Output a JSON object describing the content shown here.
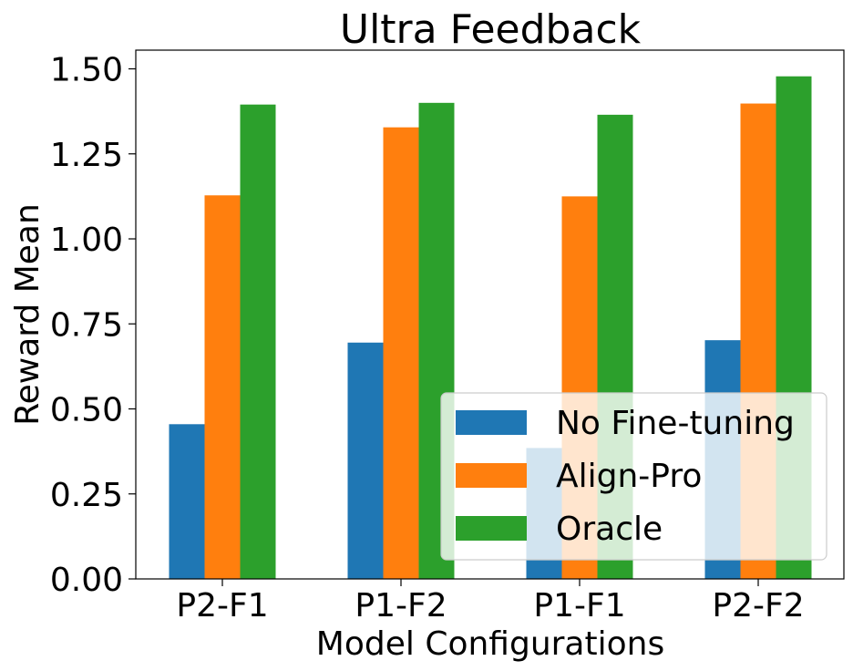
{
  "chart_data": {
    "type": "bar",
    "title": "Ultra Feedback",
    "xlabel": "Model Configurations",
    "ylabel": "Reward Mean",
    "categories": [
      "P2-F1",
      "P1-F2",
      "P1-F1",
      "P2-F2"
    ],
    "series": [
      {
        "name": "No Fine-tuning",
        "color": "#1f77b4",
        "values": [
          0.455,
          0.695,
          0.385,
          0.702
        ]
      },
      {
        "name": "Align-Pro",
        "color": "#ff7f0e",
        "values": [
          1.128,
          1.328,
          1.125,
          1.398
        ]
      },
      {
        "name": "Oracle",
        "color": "#2ca02c",
        "values": [
          1.395,
          1.4,
          1.365,
          1.478
        ]
      }
    ],
    "ylim": [
      0,
      1.555
    ],
    "yticks": [
      "0.00",
      "0.25",
      "0.50",
      "0.75",
      "1.00",
      "1.25",
      "1.50"
    ],
    "legend_position": "lower-right",
    "grid": false
  }
}
